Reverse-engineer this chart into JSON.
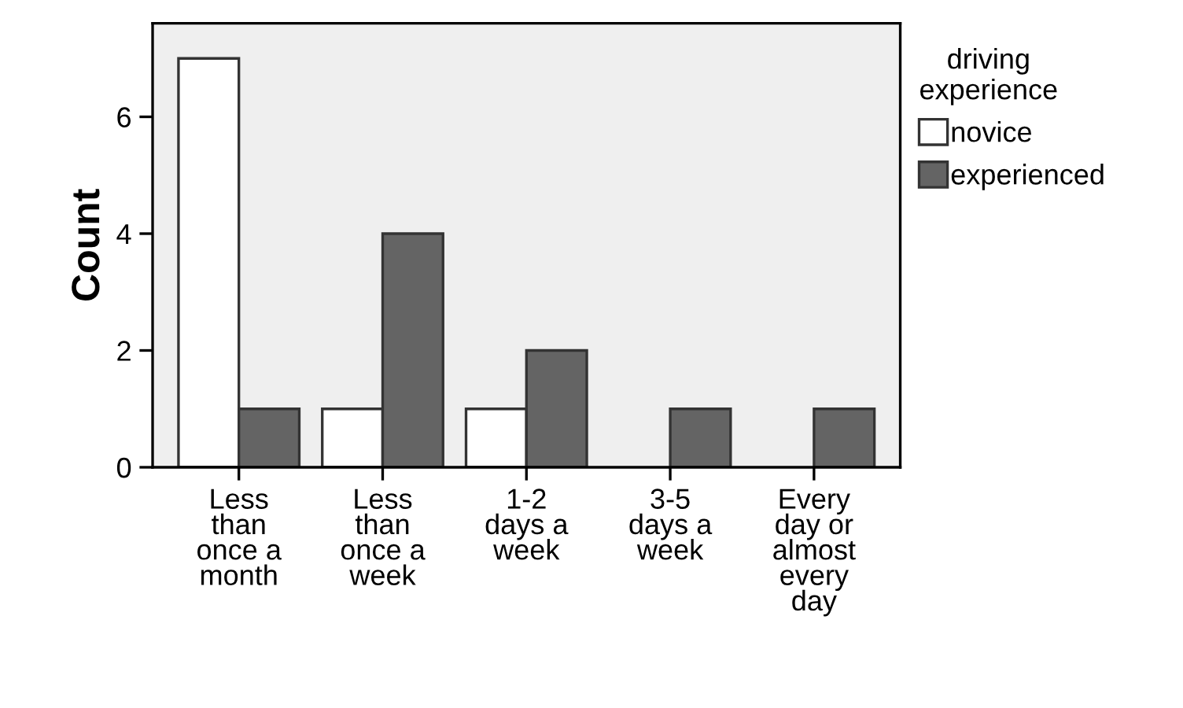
{
  "chart_data": {
    "type": "bar",
    "ylabel": "Count",
    "legend_title": "driving\nexperience",
    "categories": [
      "Less\nthan\nonce a\nmonth",
      "Less\nthan\nonce a\nweek",
      "1-2\ndays a\nweek",
      "3-5\ndays a\nweek",
      "Every\nday or\nalmost\nevery\nday"
    ],
    "series": [
      {
        "name": "novice",
        "color": "#ffffff",
        "values": [
          7,
          1,
          1,
          0,
          0
        ]
      },
      {
        "name": "experienced",
        "color": "#646464",
        "values": [
          1,
          4,
          2,
          1,
          1
        ]
      }
    ],
    "ylim": [
      0,
      7.6
    ],
    "yticks": [
      0,
      2,
      4,
      6
    ],
    "grid": false,
    "legend": "right"
  }
}
